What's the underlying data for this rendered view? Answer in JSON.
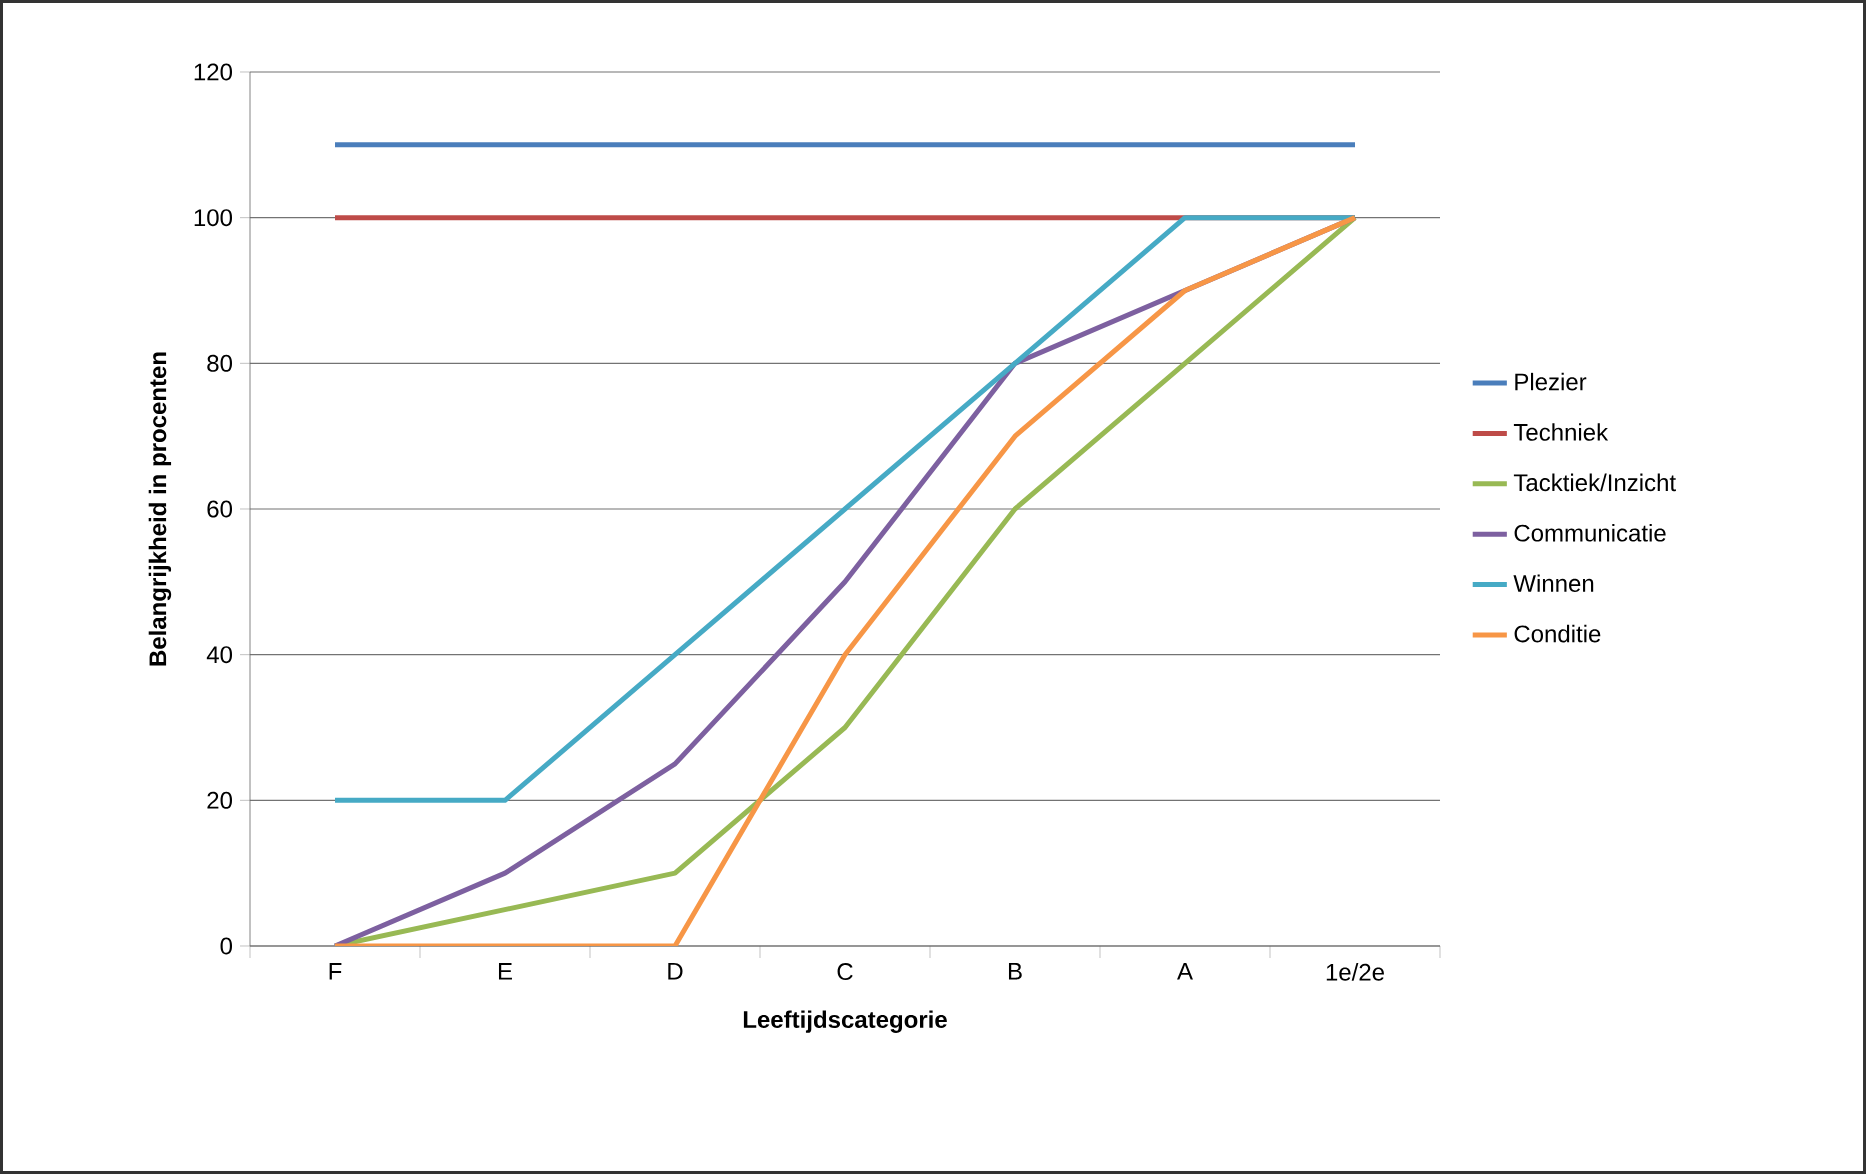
{
  "chart_data": {
    "type": "line",
    "xlabel": "Leeftijdscategorie",
    "ylabel": "Belangrijkheid in procenten",
    "categories": [
      "F",
      "E",
      "D",
      "C",
      "B",
      "A",
      "1e/2e"
    ],
    "ylim": [
      0,
      120
    ],
    "yticks": [
      0,
      20,
      40,
      60,
      80,
      100,
      120
    ],
    "grid": "y",
    "legend": "right",
    "marker": "none",
    "line_style": "solid",
    "series": [
      {
        "name": "Plezier",
        "color": "#4a7ebb",
        "values": [
          110,
          110,
          110,
          110,
          110,
          110,
          110
        ]
      },
      {
        "name": "Techniek",
        "color": "#be4b48",
        "values": [
          100,
          100,
          100,
          100,
          100,
          100,
          100
        ]
      },
      {
        "name": "Tacktiek/Inzicht",
        "color": "#98b954",
        "values": [
          0,
          5,
          10,
          30,
          60,
          80,
          100
        ]
      },
      {
        "name": "Communicatie",
        "color": "#7d60a0",
        "values": [
          0,
          10,
          25,
          50,
          80,
          90,
          100
        ]
      },
      {
        "name": "Winnen",
        "color": "#46aac5",
        "values": [
          20,
          20,
          40,
          60,
          80,
          100,
          100
        ]
      },
      {
        "name": "Conditie",
        "color": "#f79646",
        "values": [
          0,
          0,
          0,
          40,
          70,
          90,
          100
        ]
      }
    ]
  }
}
